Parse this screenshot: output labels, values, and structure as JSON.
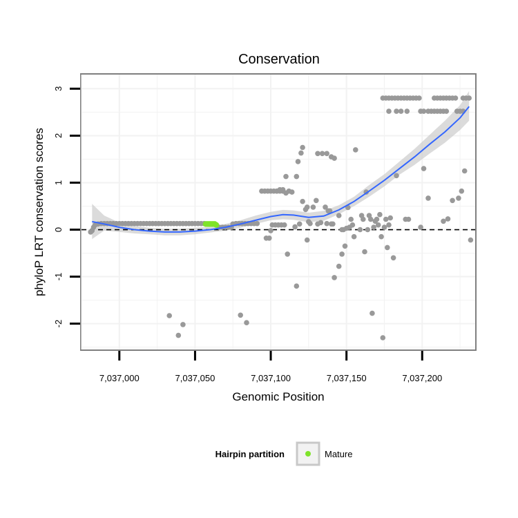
{
  "chart_data": {
    "type": "scatter",
    "title": "Conservation",
    "xlabel": "Genomic Position",
    "ylabel": "phyloP LRT conservation scores",
    "xlim": [
      7036975,
      7037235
    ],
    "ylim": [
      -2.55,
      3.3
    ],
    "xticks": [
      7037000,
      7037050,
      7037100,
      7037150,
      7037200
    ],
    "xtick_labels": [
      "7,037,000",
      "7,037,050",
      "7,037,100",
      "7,037,150",
      "7,037,200"
    ],
    "yticks": [
      -2,
      -1,
      0,
      1,
      2,
      3
    ],
    "ytick_labels": [
      "-2",
      "-1",
      "0",
      "1",
      "2",
      "3"
    ],
    "reference_line_y": 0,
    "grid": true,
    "legend": {
      "title": "Hairpin partition",
      "position": "bottom",
      "entries": [
        {
          "label": "Mature",
          "color": "#7fe32a"
        }
      ]
    },
    "colors": {
      "points": "#999999",
      "mature": "#7fe32a",
      "smooth": "#3366ff",
      "band": "#cccccc"
    },
    "series": [
      {
        "name": "Other",
        "points": [
          [
            7036981,
            -0.05
          ],
          [
            7036982,
            -0.02
          ],
          [
            7036983,
            0.05
          ],
          [
            7036984,
            0.1
          ],
          [
            7036986,
            0.12
          ],
          [
            7036988,
            0.13
          ],
          [
            7036990,
            0.13
          ],
          [
            7036992,
            0.13
          ],
          [
            7036994,
            0.13
          ],
          [
            7036996,
            0.13
          ],
          [
            7036998,
            0.13
          ],
          [
            7037000,
            0.13
          ],
          [
            7037002,
            0.13
          ],
          [
            7037004,
            0.13
          ],
          [
            7037006,
            0.13
          ],
          [
            7037008,
            0.13
          ],
          [
            7037010,
            0.13
          ],
          [
            7037012,
            0.13
          ],
          [
            7037014,
            0.13
          ],
          [
            7037016,
            0.13
          ],
          [
            7037018,
            0.13
          ],
          [
            7037020,
            0.13
          ],
          [
            7037022,
            0.13
          ],
          [
            7037024,
            0.13
          ],
          [
            7037026,
            0.13
          ],
          [
            7037028,
            0.13
          ],
          [
            7037030,
            0.13
          ],
          [
            7037032,
            0.13
          ],
          [
            7037034,
            0.13
          ],
          [
            7037036,
            0.13
          ],
          [
            7037038,
            0.13
          ],
          [
            7037040,
            0.13
          ],
          [
            7037042,
            0.13
          ],
          [
            7037044,
            0.13
          ],
          [
            7037046,
            0.13
          ],
          [
            7037048,
            0.13
          ],
          [
            7037050,
            0.13
          ],
          [
            7037052,
            0.13
          ],
          [
            7037054,
            0.13
          ],
          [
            7037056,
            0.13
          ],
          [
            7037033,
            -1.83
          ],
          [
            7037039,
            -2.25
          ],
          [
            7037042,
            -2.02
          ],
          [
            7037066,
            0.05
          ],
          [
            7037068,
            0.05
          ],
          [
            7037070,
            0.05
          ],
          [
            7037072,
            0.05
          ],
          [
            7037074,
            0.05
          ],
          [
            7037075,
            0.12
          ],
          [
            7037077,
            0.13
          ],
          [
            7037079,
            0.13
          ],
          [
            7037081,
            0.13
          ],
          [
            7037083,
            0.13
          ],
          [
            7037085,
            0.13
          ],
          [
            7037087,
            0.13
          ],
          [
            7037089,
            0.13
          ],
          [
            7037091,
            0.13
          ],
          [
            7037080,
            -1.82
          ],
          [
            7037084,
            -1.98
          ],
          [
            7037094,
            0.82
          ],
          [
            7037096,
            0.82
          ],
          [
            7037098,
            0.82
          ],
          [
            7037100,
            0.82
          ],
          [
            7037102,
            0.82
          ],
          [
            7037104,
            0.82
          ],
          [
            7037106,
            0.82
          ],
          [
            7037108,
            0.82
          ],
          [
            7037110,
            0.78
          ],
          [
            7037097,
            -0.18
          ],
          [
            7037099,
            -0.18
          ],
          [
            7037100,
            -0.02
          ],
          [
            7037101,
            0.1
          ],
          [
            7037103,
            0.1
          ],
          [
            7037105,
            0.1
          ],
          [
            7037107,
            0.1
          ],
          [
            7037109,
            0.1
          ],
          [
            7037104,
            0.82
          ],
          [
            7037106,
            0.85
          ],
          [
            7037108,
            0.85
          ],
          [
            7037110,
            1.13
          ],
          [
            7037112,
            0.82
          ],
          [
            7037114,
            0.8
          ],
          [
            7037116,
            0.06
          ],
          [
            7037111,
            -0.52
          ],
          [
            7037117,
            -1.2
          ],
          [
            7037117,
            1.13
          ],
          [
            7037118,
            1.45
          ],
          [
            7037120,
            1.63
          ],
          [
            7037121,
            1.75
          ],
          [
            7037119,
            0.12
          ],
          [
            7037121,
            0.6
          ],
          [
            7037123,
            0.43
          ],
          [
            7037124,
            0.48
          ],
          [
            7037125,
            0.17
          ],
          [
            7037126,
            0.13
          ],
          [
            7037124,
            -0.22
          ],
          [
            7037128,
            0.48
          ],
          [
            7037130,
            0.62
          ],
          [
            7037131,
            0.12
          ],
          [
            7037133,
            0.15
          ],
          [
            7037131,
            1.62
          ],
          [
            7037134,
            1.62
          ],
          [
            7037137,
            1.62
          ],
          [
            7037137,
            0.13
          ],
          [
            7037136,
            0.48
          ],
          [
            7037138,
            0.4
          ],
          [
            7037139,
            0.4
          ],
          [
            7037140,
            0.12
          ],
          [
            7037141,
            0.12
          ],
          [
            7037140,
            1.55
          ],
          [
            7037142,
            1.52
          ],
          [
            7037142,
            -1.02
          ],
          [
            7037145,
            -0.78
          ],
          [
            7037147,
            -0.52
          ],
          [
            7037148,
            0.0
          ],
          [
            7037149,
            -0.35
          ],
          [
            7037150,
            0.03
          ],
          [
            7037151,
            0.47
          ],
          [
            7037152,
            0.05
          ],
          [
            7037153,
            0.22
          ],
          [
            7037154,
            0.1
          ],
          [
            7037155,
            -0.15
          ],
          [
            7037145,
            0.3
          ],
          [
            7037147,
            0.0
          ],
          [
            7037156,
            1.7
          ],
          [
            7037159,
            0.0
          ],
          [
            7037160,
            0.3
          ],
          [
            7037161,
            0.22
          ],
          [
            7037162,
            -0.47
          ],
          [
            7037163,
            0.8
          ],
          [
            7037164,
            0.0
          ],
          [
            7037165,
            0.3
          ],
          [
            7037166,
            0.22
          ],
          [
            7037167,
            -1.78
          ],
          [
            7037168,
            0.05
          ],
          [
            7037169,
            0.18
          ],
          [
            7037170,
            0.22
          ],
          [
            7037171,
            0.1
          ],
          [
            7037172,
            0.32
          ],
          [
            7037173,
            -0.15
          ],
          [
            7037174,
            -2.3
          ],
          [
            7037175,
            0.05
          ],
          [
            7037176,
            0.22
          ],
          [
            7037177,
            -0.38
          ],
          [
            7037178,
            0.1
          ],
          [
            7037179,
            0.25
          ],
          [
            7037181,
            -0.6
          ],
          [
            7037183,
            1.15
          ],
          [
            7037189,
            0.22
          ],
          [
            7037191,
            0.22
          ],
          [
            7037199,
            0.05
          ],
          [
            7037201,
            1.3
          ],
          [
            7037204,
            0.67
          ],
          [
            7037214,
            0.18
          ],
          [
            7037217,
            0.23
          ],
          [
            7037220,
            0.62
          ],
          [
            7037224,
            0.67
          ],
          [
            7037226,
            0.82
          ],
          [
            7037228,
            1.25
          ],
          [
            7037232,
            -0.22
          ],
          [
            7037174,
            2.8
          ],
          [
            7037176,
            2.8
          ],
          [
            7037178,
            2.8
          ],
          [
            7037180,
            2.8
          ],
          [
            7037182,
            2.8
          ],
          [
            7037184,
            2.8
          ],
          [
            7037186,
            2.8
          ],
          [
            7037188,
            2.8
          ],
          [
            7037190,
            2.8
          ],
          [
            7037192,
            2.8
          ],
          [
            7037194,
            2.8
          ],
          [
            7037196,
            2.8
          ],
          [
            7037198,
            2.8
          ],
          [
            7037208,
            2.8
          ],
          [
            7037210,
            2.8
          ],
          [
            7037212,
            2.8
          ],
          [
            7037214,
            2.8
          ],
          [
            7037216,
            2.8
          ],
          [
            7037218,
            2.8
          ],
          [
            7037220,
            2.8
          ],
          [
            7037222,
            2.8
          ],
          [
            7037227,
            2.8
          ],
          [
            7037229,
            2.8
          ],
          [
            7037231,
            2.8
          ],
          [
            7037178,
            2.52
          ],
          [
            7037183,
            2.52
          ],
          [
            7037186,
            2.52
          ],
          [
            7037190,
            2.52
          ],
          [
            7037199,
            2.52
          ],
          [
            7037201,
            2.52
          ],
          [
            7037204,
            2.52
          ],
          [
            7037206,
            2.52
          ],
          [
            7037208,
            2.52
          ],
          [
            7037210,
            2.52
          ],
          [
            7037212,
            2.52
          ],
          [
            7037214,
            2.52
          ],
          [
            7037216,
            2.52
          ],
          [
            7037223,
            2.52
          ],
          [
            7037225,
            2.52
          ],
          [
            7037227,
            2.52
          ]
        ]
      },
      {
        "name": "Mature",
        "points": [
          [
            7037057,
            0.12
          ],
          [
            7037058,
            0.12
          ],
          [
            7037059,
            0.12
          ],
          [
            7037060,
            0.12
          ],
          [
            7037061,
            0.12
          ],
          [
            7037062,
            0.12
          ],
          [
            7037063,
            0.12
          ],
          [
            7037064,
            0.1
          ]
        ]
      }
    ],
    "smooth": {
      "x": [
        7036982,
        7036990,
        7037000,
        7037010,
        7037020,
        7037030,
        7037040,
        7037050,
        7037060,
        7037070,
        7037080,
        7037090,
        7037100,
        7037108,
        7037115,
        7037125,
        7037135,
        7037145,
        7037155,
        7037165,
        7037175,
        7037185,
        7037195,
        7037205,
        7037215,
        7037225,
        7037231
      ],
      "y": [
        0.17,
        0.12,
        0.05,
        0.0,
        -0.03,
        -0.05,
        -0.05,
        -0.03,
        0.0,
        0.05,
        0.12,
        0.2,
        0.28,
        0.32,
        0.31,
        0.26,
        0.29,
        0.42,
        0.6,
        0.82,
        1.05,
        1.3,
        1.55,
        1.82,
        2.08,
        2.38,
        2.62
      ],
      "ci_low": [
        -0.2,
        -0.02,
        -0.05,
        -0.08,
        -0.1,
        -0.12,
        -0.12,
        -0.1,
        -0.06,
        -0.02,
        0.04,
        0.12,
        0.2,
        0.22,
        0.21,
        0.16,
        0.19,
        0.33,
        0.5,
        0.7,
        0.92,
        1.17,
        1.38,
        1.62,
        1.85,
        2.12,
        2.32
      ],
      "ci_high": [
        0.55,
        0.3,
        0.15,
        0.08,
        0.04,
        0.02,
        0.02,
        0.04,
        0.06,
        0.12,
        0.2,
        0.3,
        0.38,
        0.42,
        0.41,
        0.36,
        0.4,
        0.52,
        0.7,
        0.95,
        1.18,
        1.45,
        1.72,
        2.02,
        2.32,
        2.65,
        2.95
      ]
    }
  }
}
